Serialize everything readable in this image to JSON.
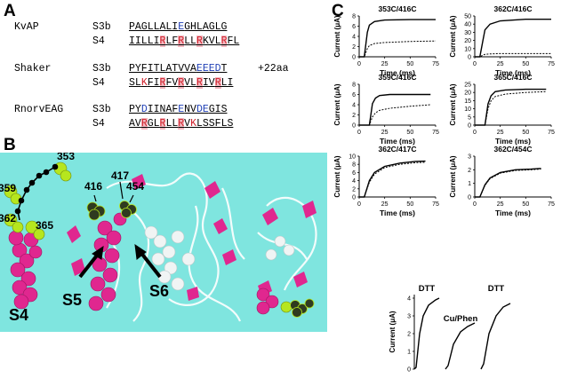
{
  "panels": {
    "a": "A",
    "b": "B",
    "c": "C"
  },
  "sequences": [
    {
      "channel": "KvAP",
      "rows": [
        {
          "segment": "S3b",
          "text": "PAGLLALIEGHLAGLG"
        },
        {
          "segment": "S4",
          "text": "IILLIRLFRLLRKVLRFL"
        }
      ]
    },
    {
      "channel": "Shaker",
      "rows": [
        {
          "segment": "S3b",
          "text": "PYFITLATVVAEEEDT",
          "suffix": "+22aa"
        },
        {
          "segment": "S4",
          "text": "SLKFIRFVRVLRIVRLI"
        }
      ]
    },
    {
      "channel": "RnorvEAG",
      "rows": [
        {
          "segment": "S3b",
          "text": "PYDIINAFENVDEGIS"
        },
        {
          "segment": "S4",
          "text": "AVRGLRLLRVKLSSFLS"
        }
      ]
    }
  ],
  "structure": {
    "residues": [
      "353",
      "359",
      "362",
      "365",
      "416",
      "417",
      "454"
    ],
    "segments": [
      "S4",
      "S5",
      "S6"
    ],
    "colors": {
      "background": "#7fe5df",
      "helix": "#e0278f",
      "cys": "#b6e61e",
      "dark": "#2f3a20"
    }
  },
  "traces": {
    "ylabel": "Current (μA)",
    "xlabel": "Time (ms)",
    "plots": [
      {
        "title": "353C/416C",
        "yticks": [
          "0",
          "2",
          "4",
          "6",
          "8"
        ],
        "xticks": [
          "0",
          "25",
          "50",
          "75"
        ]
      },
      {
        "title": "362C/416C",
        "yticks": [
          "0",
          "10",
          "20",
          "30",
          "40",
          "50"
        ],
        "xticks": [
          "0",
          "25",
          "50",
          "75"
        ]
      },
      {
        "title": "359C/416C",
        "yticks": [
          "0",
          "2",
          "4",
          "6",
          "8"
        ],
        "xticks": [
          "0",
          "25",
          "50",
          "75"
        ]
      },
      {
        "title": "365C/416C",
        "yticks": [
          "0",
          "5",
          "10",
          "15",
          "20",
          "25"
        ],
        "xticks": [
          "0",
          "25",
          "50",
          "75"
        ]
      },
      {
        "title": "362C/417C",
        "yticks": [
          "0",
          "2",
          "4",
          "6",
          "8",
          "10"
        ],
        "xticks": [
          "0",
          "25",
          "50",
          "75"
        ]
      },
      {
        "title": "362C/454C",
        "yticks": [
          "0",
          "1",
          "2",
          "3"
        ],
        "xticks": [
          "0",
          "25",
          "50",
          "75"
        ]
      }
    ],
    "bottom": {
      "ylabel": "Current (μA)",
      "yticks": [
        "0",
        "1",
        "2",
        "3",
        "4"
      ],
      "labels": [
        "DTT",
        "Cu/Phen",
        "DTT"
      ]
    }
  },
  "chart_data": [
    {
      "type": "line",
      "title": "353C/416C",
      "xlabel": "Time (ms)",
      "ylabel": "Current (μA)",
      "ylim": [
        0,
        8
      ],
      "xlim": [
        0,
        75
      ],
      "series": [
        {
          "name": "",
          "x": [
            0,
            5,
            8,
            10,
            15,
            25,
            50,
            75
          ],
          "y": [
            0,
            0,
            4.8,
            6.2,
            6.9,
            7.2,
            7.3,
            7.3
          ]
        },
        {
          "name": "",
          "x": [
            0,
            5,
            8,
            10,
            15,
            25,
            50,
            75
          ],
          "y": [
            0,
            0,
            1.6,
            2.2,
            2.6,
            2.8,
            3.0,
            3.1
          ]
        }
      ]
    },
    {
      "type": "line",
      "title": "362C/416C",
      "xlabel": "Time (ms)",
      "ylabel": "Current (μA)",
      "ylim": [
        0,
        50
      ],
      "xlim": [
        0,
        75
      ],
      "series": [
        {
          "name": "",
          "x": [
            0,
            5,
            8,
            10,
            15,
            25,
            50,
            75
          ],
          "y": [
            0,
            0,
            20,
            33,
            40,
            44,
            46,
            46
          ]
        },
        {
          "name": "",
          "x": [
            0,
            5,
            8,
            10,
            15,
            25,
            50,
            75
          ],
          "y": [
            0,
            0,
            2,
            3,
            3.5,
            4,
            4,
            4
          ]
        }
      ]
    },
    {
      "type": "line",
      "title": "359C/416C",
      "xlabel": "Time (ms)",
      "ylabel": "Current (μA)",
      "ylim": [
        0,
        8
      ],
      "xlim": [
        0,
        75
      ],
      "series": [
        {
          "name": "",
          "x": [
            0,
            10,
            13,
            16,
            20,
            30,
            50,
            70
          ],
          "y": [
            0,
            0,
            4.2,
            5.3,
            5.8,
            6.0,
            6.0,
            6.0
          ]
        },
        {
          "name": "",
          "x": [
            0,
            10,
            13,
            16,
            20,
            30,
            50,
            70
          ],
          "y": [
            0,
            0,
            1.6,
            2.4,
            2.9,
            3.3,
            3.7,
            4.0
          ]
        }
      ]
    },
    {
      "type": "line",
      "title": "365C/416C",
      "xlabel": "Time (ms)",
      "ylabel": "Current (μA)",
      "ylim": [
        0,
        25
      ],
      "xlim": [
        0,
        75
      ],
      "series": [
        {
          "name": "",
          "x": [
            0,
            10,
            13,
            16,
            20,
            30,
            50,
            70
          ],
          "y": [
            0,
            0,
            13,
            18,
            20.5,
            21.5,
            22,
            22
          ]
        },
        {
          "name": "",
          "x": [
            0,
            10,
            13,
            16,
            20,
            30,
            50,
            70
          ],
          "y": [
            0,
            0,
            10,
            15,
            17.5,
            19,
            20,
            20.5
          ]
        }
      ]
    },
    {
      "type": "line",
      "title": "362C/417C",
      "xlabel": "Time (ms)",
      "ylabel": "Current (μA)",
      "ylim": [
        0,
        10
      ],
      "xlim": [
        0,
        75
      ],
      "series": [
        {
          "name": "",
          "x": [
            0,
            5,
            10,
            15,
            25,
            40,
            55,
            65
          ],
          "y": [
            0,
            0,
            4,
            6,
            7.5,
            8.3,
            8.7,
            8.8
          ]
        },
        {
          "name": "",
          "x": [
            0,
            5,
            10,
            15,
            25,
            40,
            55,
            65
          ],
          "y": [
            0,
            0,
            3.6,
            5.6,
            7.2,
            8.0,
            8.4,
            8.5
          ]
        }
      ]
    },
    {
      "type": "line",
      "title": "362C/454C",
      "xlabel": "Time (ms)",
      "ylabel": "Current (μA)",
      "ylim": [
        0,
        3
      ],
      "xlim": [
        0,
        75
      ],
      "series": [
        {
          "name": "",
          "x": [
            0,
            5,
            10,
            15,
            25,
            40,
            55,
            65
          ],
          "y": [
            0,
            0,
            0.9,
            1.4,
            1.8,
            2.0,
            2.05,
            2.1
          ]
        },
        {
          "name": "",
          "x": [
            0,
            5,
            10,
            15,
            25,
            40,
            55,
            65
          ],
          "y": [
            0,
            0,
            0.85,
            1.35,
            1.75,
            1.95,
            2.0,
            2.05
          ]
        }
      ]
    }
  ]
}
